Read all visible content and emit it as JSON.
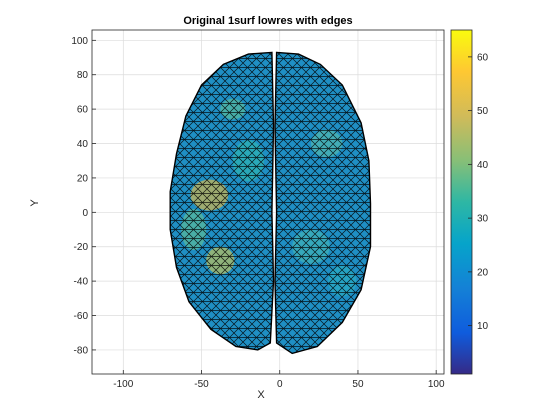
{
  "chart_data": {
    "type": "surface",
    "title": "Original 1surf lowres with edges",
    "xlabel": "X",
    "ylabel": "Y",
    "xlim": [
      -120,
      105
    ],
    "ylim": [
      -94,
      106
    ],
    "xticks": [
      -100,
      -50,
      0,
      50,
      100
    ],
    "yticks": [
      -80,
      -60,
      -40,
      -20,
      0,
      20,
      40,
      60,
      80,
      100
    ],
    "grid": true,
    "colorbar": {
      "location": "right",
      "range": [
        1,
        65
      ],
      "ticks": [
        10,
        20,
        30,
        40,
        50,
        60
      ],
      "colormap": "parula"
    },
    "regions": [
      {
        "name": "left hemisphere",
        "x_range": [
          -70,
          -4
        ],
        "y_range": [
          -80,
          93
        ]
      },
      {
        "name": "right hemisphere",
        "x_range": [
          -3,
          58
        ],
        "y_range": [
          -82,
          93
        ]
      }
    ]
  }
}
